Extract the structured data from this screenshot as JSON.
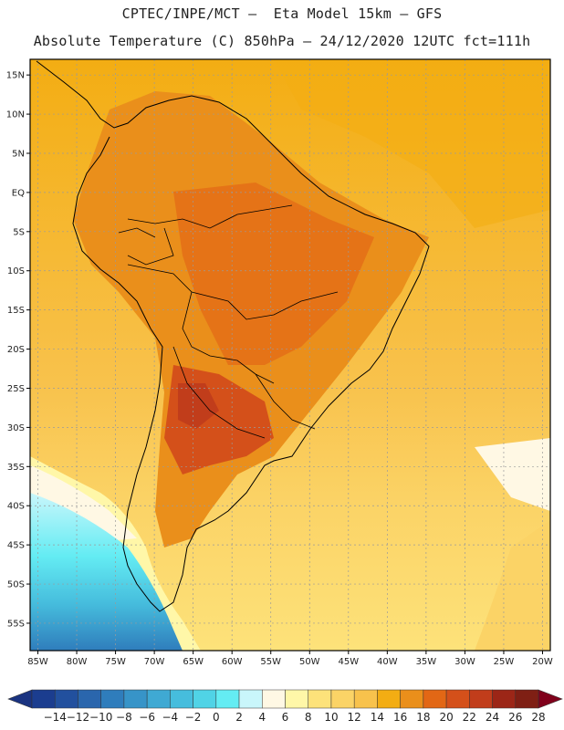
{
  "header": {
    "line1": "CPTEC/INPE/MCT –  Eta Model 15km – GFS",
    "line2": "Absolute Temperature (C) 850hPa – 24/12/2020 12UTC fct=111h"
  },
  "map": {
    "lon_range": [
      -86,
      -19
    ],
    "lat_range": [
      -58.5,
      17
    ],
    "lat_ticks": [
      {
        "value": 15,
        "label": "15N"
      },
      {
        "value": 10,
        "label": "10N"
      },
      {
        "value": 5,
        "label": "5N"
      },
      {
        "value": 0,
        "label": "EQ"
      },
      {
        "value": -5,
        "label": "5S"
      },
      {
        "value": -10,
        "label": "10S"
      },
      {
        "value": -15,
        "label": "15S"
      },
      {
        "value": -20,
        "label": "20S"
      },
      {
        "value": -25,
        "label": "25S"
      },
      {
        "value": -30,
        "label": "30S"
      },
      {
        "value": -35,
        "label": "35S"
      },
      {
        "value": -40,
        "label": "40S"
      },
      {
        "value": -45,
        "label": "45S"
      },
      {
        "value": -50,
        "label": "50S"
      },
      {
        "value": -55,
        "label": "55S"
      }
    ],
    "lon_ticks": [
      {
        "value": -85,
        "label": "85W"
      },
      {
        "value": -80,
        "label": "80W"
      },
      {
        "value": -75,
        "label": "75W"
      },
      {
        "value": -70,
        "label": "70W"
      },
      {
        "value": -65,
        "label": "65W"
      },
      {
        "value": -60,
        "label": "60W"
      },
      {
        "value": -55,
        "label": "55W"
      },
      {
        "value": -50,
        "label": "50W"
      },
      {
        "value": -45,
        "label": "45W"
      },
      {
        "value": -40,
        "label": "40W"
      },
      {
        "value": -35,
        "label": "35W"
      },
      {
        "value": -30,
        "label": "30W"
      },
      {
        "value": -25,
        "label": "25W"
      },
      {
        "value": -20,
        "label": "20W"
      }
    ]
  },
  "colorbar": {
    "labels": [
      "-14",
      "-12",
      "-10",
      "-8",
      "-6",
      "-4",
      "-2",
      "0",
      "2",
      "4",
      "6",
      "8",
      "10",
      "12",
      "14",
      "16",
      "18",
      "20",
      "22",
      "24",
      "26",
      "28"
    ],
    "colors": [
      "#1b3d8f",
      "#22509e",
      "#2a66ad",
      "#2f7dbc",
      "#3794c8",
      "#3fa9d3",
      "#46bddd",
      "#50d3e6",
      "#64ecf3",
      "#c9f6fb",
      "#fff8e4",
      "#fff7a8",
      "#fde27a",
      "#fbd366",
      "#f8c24c",
      "#f3ad13",
      "#ea8f1b",
      "#e26715",
      "#d4501a",
      "#c13d1b",
      "#9c2617",
      "#7f1f14"
    ],
    "end_low": "#1a3380",
    "end_high": "#80001b"
  }
}
